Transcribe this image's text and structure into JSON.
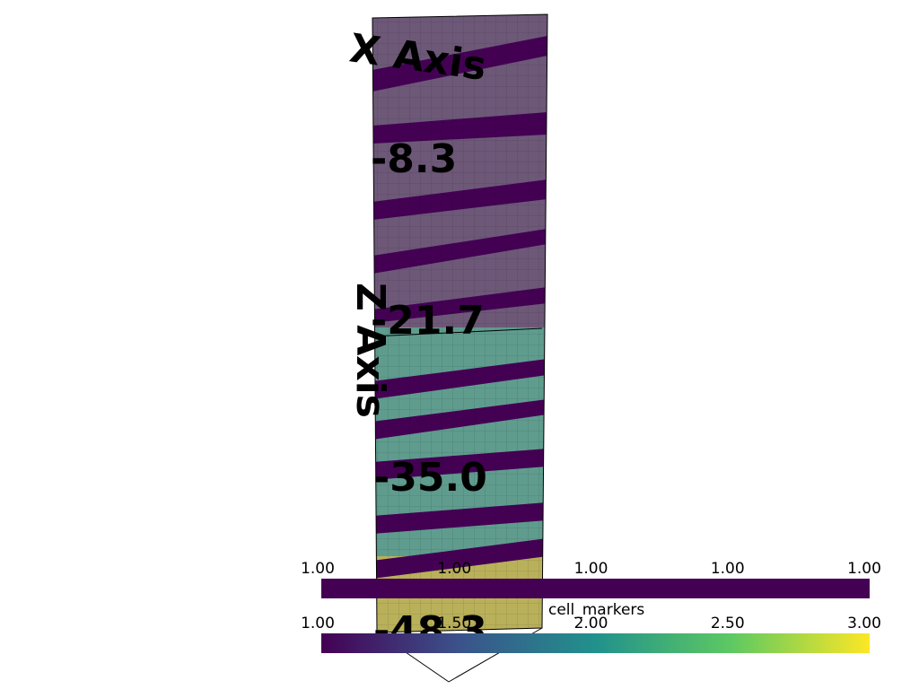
{
  "scene": {
    "z_axis_title": "Z Axis",
    "x_axis_title": "X Axis",
    "z_tick_labels": [
      "-8.3",
      "-21.7",
      "-35.0",
      "-48.3"
    ]
  },
  "colorbars": [
    {
      "labels": [
        "1.00",
        "1.00",
        "1.00",
        "1.00",
        "1.00"
      ]
    },
    {
      "title": "cell_markers",
      "labels": [
        "1.00",
        "1.50",
        "2.00",
        "2.50",
        "3.00"
      ]
    }
  ]
}
